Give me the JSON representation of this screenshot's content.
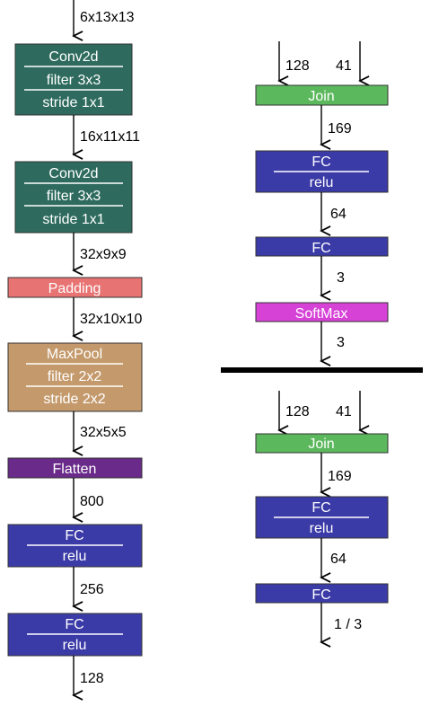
{
  "colors": {
    "conv": "#2e6b5e",
    "padding": "#e87373",
    "maxpool": "#c49a6c",
    "flatten": "#6a2a8a",
    "fc": "#3b3ba8",
    "join": "#5cb85c",
    "softmax": "#d641d6"
  },
  "left_column": {
    "input_dim": "6x13x13",
    "conv1": {
      "lines": [
        "Conv2d",
        "filter 3x3",
        "stride 1x1"
      ]
    },
    "dim_after_conv1": "16x11x11",
    "conv2": {
      "lines": [
        "Conv2d",
        "filter 3x3",
        "stride 1x1"
      ]
    },
    "dim_after_conv2": "32x9x9",
    "padding": {
      "lines": [
        "Padding"
      ]
    },
    "dim_after_padding": "32x10x10",
    "maxpool": {
      "lines": [
        "MaxPool",
        "filter 2x2",
        "stride 2x2"
      ]
    },
    "dim_after_maxpool": "32x5x5",
    "flatten": {
      "lines": [
        "Flatten"
      ]
    },
    "dim_after_flatten": "800",
    "fc1": {
      "lines": [
        "FC",
        "relu"
      ]
    },
    "dim_after_fc1": "256",
    "fc2": {
      "lines": [
        "FC",
        "relu"
      ]
    },
    "dim_after_fc2": "128"
  },
  "right_top": {
    "input_a": "128",
    "input_b": "41",
    "join": {
      "lines": [
        "Join"
      ]
    },
    "dim_after_join": "169",
    "fc1": {
      "lines": [
        "FC",
        "relu"
      ]
    },
    "dim_after_fc1": "64",
    "fc2": {
      "lines": [
        "FC"
      ]
    },
    "dim_after_fc2": "3",
    "softmax": {
      "lines": [
        "SoftMax"
      ]
    },
    "output_dim": "3"
  },
  "right_bottom": {
    "input_a": "128",
    "input_b": "41",
    "join": {
      "lines": [
        "Join"
      ]
    },
    "dim_after_join": "169",
    "fc1": {
      "lines": [
        "FC",
        "relu"
      ]
    },
    "dim_after_fc1": "64",
    "fc2": {
      "lines": [
        "FC"
      ]
    },
    "output_dim": "1 / 3"
  }
}
